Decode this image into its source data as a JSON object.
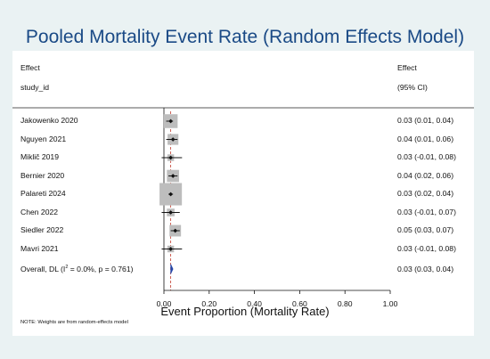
{
  "chart_data": {
    "type": "forest",
    "title": "Pooled Mortality Event Rate (Random Effects Model)",
    "column_headers": {
      "study": "study_id",
      "effect_line1": "Effect",
      "effect_line2": "(95% CI)"
    },
    "studies": [
      {
        "label": "Jakowenko 2020",
        "effect": 0.03,
        "ci_low": 0.01,
        "ci_high": 0.04,
        "text": "0.03 (0.01, 0.04)",
        "weight": 13
      },
      {
        "label": "Nguyen 2021",
        "effect": 0.04,
        "ci_low": 0.01,
        "ci_high": 0.06,
        "text": "0.04 (0.01, 0.06)",
        "weight": 8
      },
      {
        "label": "Miklič 2019",
        "effect": 0.03,
        "ci_low": -0.01,
        "ci_high": 0.08,
        "text": "0.03 (-0.01, 0.08)",
        "weight": 3
      },
      {
        "label": "Bernier 2020",
        "effect": 0.04,
        "ci_low": 0.02,
        "ci_high": 0.06,
        "text": "0.04 (0.02, 0.06)",
        "weight": 10
      },
      {
        "label": "Palareti 2024",
        "effect": 0.03,
        "ci_low": 0.02,
        "ci_high": 0.04,
        "text": "0.03 (0.02, 0.04)",
        "weight": 34
      },
      {
        "label": "Chen 2022",
        "effect": 0.03,
        "ci_low": -0.01,
        "ci_high": 0.07,
        "text": "0.03 (-0.01, 0.07)",
        "weight": 4
      },
      {
        "label": "Siedler 2022",
        "effect": 0.05,
        "ci_low": 0.03,
        "ci_high": 0.07,
        "text": "0.05 (0.03, 0.07)",
        "weight": 9
      },
      {
        "label": "Mavri 2021",
        "effect": 0.03,
        "ci_low": -0.01,
        "ci_high": 0.08,
        "text": "0.03 (-0.01, 0.08)",
        "weight": 3
      }
    ],
    "overall": {
      "label_prefix": "Overall, DL (I",
      "label_sup": "2",
      "label_suffix": " = 0.0%, p = 0.761)",
      "effect": 0.03,
      "ci_low": 0.03,
      "ci_high": 0.04,
      "text": "0.03 (0.03, 0.04)"
    },
    "x_ticks": [
      "0.00",
      "0.20",
      "0.40",
      "0.60",
      "0.80",
      "1.00"
    ],
    "x_tick_values": [
      0,
      0.2,
      0.4,
      0.6,
      0.8,
      1.0
    ],
    "xlim": [
      0,
      1
    ],
    "xlabel": "Event Proportion (Mortality Rate)",
    "note": "NOTE: Weights are from random-effects model",
    "colors": {
      "background": "#eaf2f3",
      "panel": "#ffffff",
      "title": "#1a4a86",
      "box": "#bdbdbd",
      "point": "#111111",
      "ci": "#111111",
      "overall_line": "#c0392b",
      "diamond": "#2446a8"
    }
  }
}
